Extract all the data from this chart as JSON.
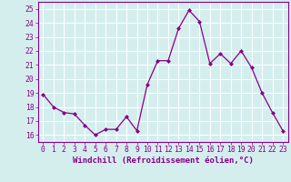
{
  "x": [
    0,
    1,
    2,
    3,
    4,
    5,
    6,
    7,
    8,
    9,
    10,
    11,
    12,
    13,
    14,
    15,
    16,
    17,
    18,
    19,
    20,
    21,
    22,
    23
  ],
  "y": [
    18.9,
    18.0,
    17.6,
    17.5,
    16.7,
    16.0,
    16.4,
    16.4,
    17.3,
    16.3,
    19.6,
    21.3,
    21.3,
    23.6,
    24.9,
    24.1,
    21.1,
    21.8,
    21.1,
    22.0,
    20.8,
    19.0,
    17.6,
    16.3
  ],
  "line_color": "#880088",
  "marker": "D",
  "markersize": 2.0,
  "linewidth": 0.9,
  "xlabel": "Windchill (Refroidissement éolien,°C)",
  "xlabel_fontsize": 6.5,
  "ylim": [
    15.5,
    25.5
  ],
  "yticks": [
    16,
    17,
    18,
    19,
    20,
    21,
    22,
    23,
    24,
    25
  ],
  "xticks": [
    0,
    1,
    2,
    3,
    4,
    5,
    6,
    7,
    8,
    9,
    10,
    11,
    12,
    13,
    14,
    15,
    16,
    17,
    18,
    19,
    20,
    21,
    22,
    23
  ],
  "tick_fontsize": 5.8,
  "bg_color": "#d4eeee",
  "grid_color": "#ffffff",
  "axis_color": "#880088",
  "xlabel_color": "#880088"
}
